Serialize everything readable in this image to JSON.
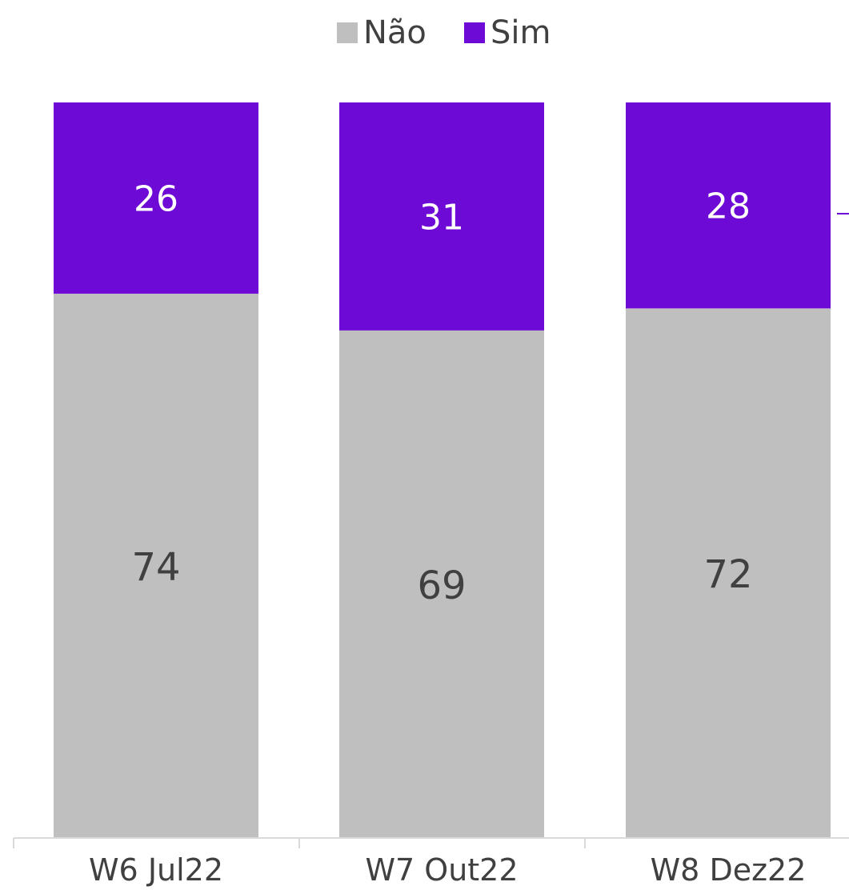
{
  "chart_data": {
    "type": "bar",
    "stacked": true,
    "categories": [
      "W6 Jul22",
      "W7 Out22",
      "W8 Dez22"
    ],
    "series": [
      {
        "name": "Não",
        "values": [
          74,
          69,
          72
        ],
        "color": "#bfbfbf"
      },
      {
        "name": "Sim",
        "values": [
          26,
          31,
          28
        ],
        "color": "#6e0ad6"
      }
    ],
    "ylim": [
      0,
      100
    ],
    "grid": false,
    "legend_position": "top"
  }
}
